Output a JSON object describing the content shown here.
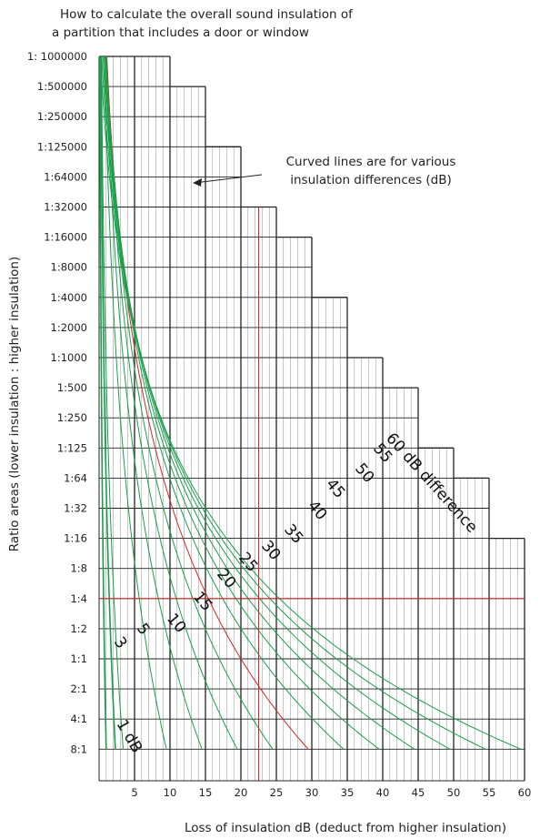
{
  "chart_data": {
    "type": "line",
    "title": "How to calculate the overall sound insulation of a partition that includes a door or window",
    "title_lines": [
      "How to calculate the overall sound insulation of",
      "a partition that includes a door or window"
    ],
    "xlabel": "Loss of insulation dB (deduct from higher insulation)",
    "ylabel": "Ratio areas (lower insulation : higher insulation)",
    "x_ticks": [
      5,
      10,
      15,
      20,
      25,
      30,
      35,
      40,
      45,
      50,
      55,
      60
    ],
    "xlim": [
      0,
      60
    ],
    "y_ticks": [
      "1: 1000000",
      "1:500000",
      "1:250000",
      "1:125000",
      "1:64000",
      "1:32000",
      "1:16000",
      "1:8000",
      "1:4000",
      "1:2000",
      "1:1000",
      "1:500",
      "1:250",
      "1:125",
      "1:64",
      "1:32",
      "1:16",
      "1:8",
      "1:4",
      "1:2",
      "1:1",
      "2:1",
      "4:1",
      "8:1"
    ],
    "grid": true,
    "annotation": {
      "line1": "Curved lines are for various",
      "line2": "insulation differences (dB)"
    },
    "series": [
      {
        "name": "1 dB",
        "label": "1 dB",
        "difference_db": 1,
        "bottom_x": 1.0
      },
      {
        "name": "3",
        "label": "3",
        "difference_db": 3,
        "bottom_x": 2.3
      },
      {
        "name": "5",
        "label": "5",
        "difference_db": 5,
        "bottom_x": 3.4
      },
      {
        "name": "10",
        "label": "10",
        "difference_db": 10,
        "bottom_x": 9.5
      },
      {
        "name": "15",
        "label": "15",
        "difference_db": 15,
        "bottom_x": 14.5
      },
      {
        "name": "20",
        "label": "20",
        "difference_db": 20,
        "bottom_x": 19.5
      },
      {
        "name": "25",
        "label": "25",
        "difference_db": 25,
        "bottom_x": 24.5
      },
      {
        "name": "30",
        "label": "30",
        "difference_db": 30,
        "bottom_x": 29.5,
        "color": "#dd2222"
      },
      {
        "name": "35",
        "label": "35",
        "difference_db": 35,
        "bottom_x": 34.5
      },
      {
        "name": "40",
        "label": "40",
        "difference_db": 40,
        "bottom_x": 39.5
      },
      {
        "name": "45",
        "label": "45",
        "difference_db": 45,
        "bottom_x": 44.5
      },
      {
        "name": "50",
        "label": "50",
        "difference_db": 50,
        "bottom_x": 49.5
      },
      {
        "name": "55",
        "label": "55",
        "difference_db": 55,
        "bottom_x": 54.5
      },
      {
        "name": "60 dB difference",
        "label": "60 dB difference",
        "difference_db": 60,
        "bottom_x": 59.5
      }
    ],
    "reference_lines": {
      "x": 22.5,
      "y_ratio": "1:4"
    },
    "colors": {
      "curve": "#1a9e4a",
      "highlight": "#dd2222",
      "grid_major": "#222222",
      "grid_minor": "#8f8f8f"
    }
  }
}
